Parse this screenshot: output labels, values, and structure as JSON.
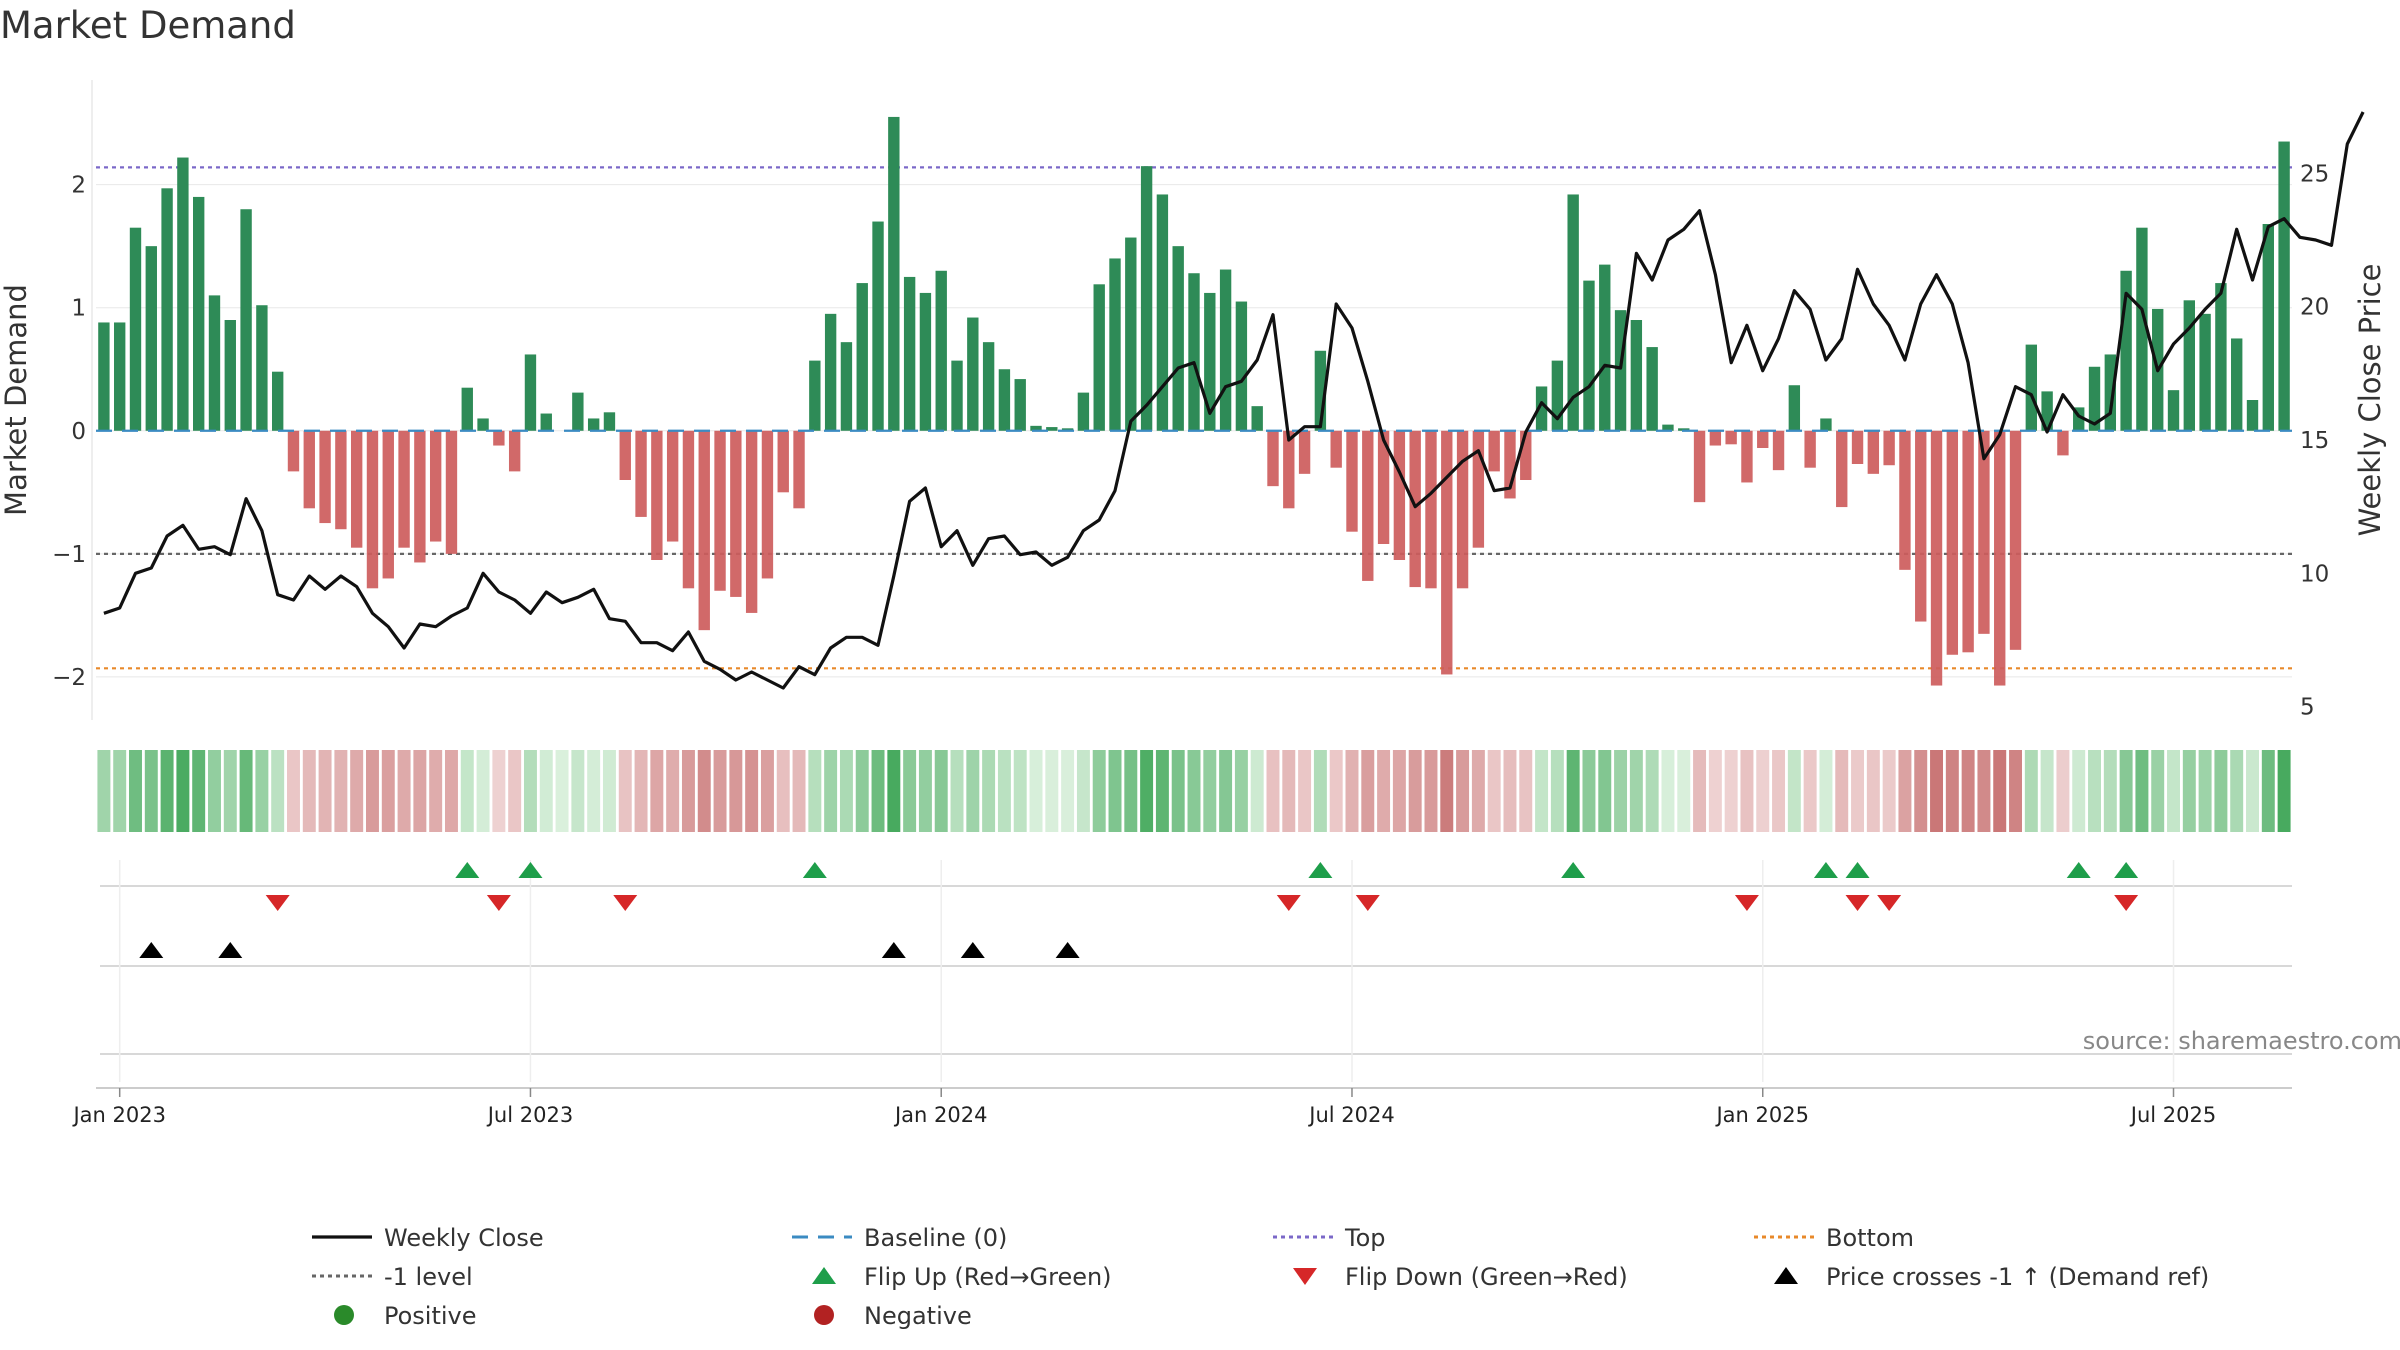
{
  "chart_data": {
    "type": "bar",
    "title": "Market Demand",
    "ylabel": "Market Demand",
    "y2label": "Weekly Close Price",
    "ylim": [
      -2.35,
      2.85
    ],
    "y2lim": [
      4.5,
      28.5
    ],
    "yticks": [
      "−2",
      "−1",
      "0",
      "1",
      "2"
    ],
    "ytick_values": [
      -2,
      -1,
      0,
      1,
      2
    ],
    "y2ticks": [
      "5",
      "10",
      "15",
      "20",
      "25"
    ],
    "y2tick_values": [
      5,
      10,
      15,
      20,
      25
    ],
    "xticks": [
      "Jan 2023",
      "Jul 2023",
      "Jan 2024",
      "Jul 2024",
      "Jan 2025",
      "Jul 2025"
    ],
    "xtick_weeks": [
      1,
      27,
      53,
      79,
      105,
      131
    ],
    "reference_lines": {
      "top": 2.14,
      "bottom": -1.93,
      "minus_one": -1,
      "baseline": 0
    },
    "colors": {
      "positive": "#2e8b57",
      "negative": "#cd5c5c",
      "close": "#111111",
      "top": "#7b68c8",
      "bottom": "#e8892a",
      "minus_one": "#666666",
      "baseline": "#3b8bc2",
      "flip_up": "#1e9e4a",
      "flip_down": "#d62728",
      "cross": "#000000",
      "legend_positive": "#2a8a2a",
      "legend_negative": "#b22222"
    },
    "demand": [
      0.88,
      0.88,
      1.65,
      1.5,
      1.97,
      2.22,
      1.9,
      1.1,
      0.9,
      1.8,
      1.02,
      0.48,
      -0.33,
      -0.63,
      -0.75,
      -0.8,
      -0.95,
      -1.28,
      -1.2,
      -0.95,
      -1.07,
      -0.9,
      -1.0,
      0.35,
      0.1,
      -0.12,
      -0.33,
      0.62,
      0.14,
      0,
      0.31,
      0.1,
      0.15,
      -0.4,
      -0.7,
      -1.05,
      -0.9,
      -1.28,
      -1.62,
      -1.3,
      -1.35,
      -1.48,
      -1.2,
      -0.5,
      -0.63,
      0.57,
      0.95,
      0.72,
      1.2,
      1.7,
      2.55,
      1.25,
      1.12,
      1.3,
      0.57,
      0.92,
      0.72,
      0.5,
      0.42,
      0.04,
      0.03,
      0.02,
      0.31,
      1.19,
      1.4,
      1.57,
      2.15,
      1.92,
      1.5,
      1.28,
      1.12,
      1.31,
      1.05,
      0.2,
      -0.45,
      -0.63,
      -0.35,
      0.65,
      -0.3,
      -0.82,
      -1.22,
      -0.92,
      -1.05,
      -1.27,
      -1.28,
      -1.98,
      -1.28,
      -0.95,
      -0.33,
      -0.55,
      -0.4,
      0.36,
      0.57,
      1.92,
      1.22,
      1.35,
      0.98,
      0.9,
      0.68,
      0.05,
      0.02,
      -0.58,
      -0.12,
      -0.11,
      -0.42,
      -0.14,
      -0.32,
      0.37,
      -0.3,
      0.1,
      -0.62,
      -0.27,
      -0.35,
      -0.28,
      -1.13,
      -1.55,
      -2.07,
      -1.82,
      -1.8,
      -1.65,
      -2.07,
      -1.78,
      0.7,
      0.32,
      -0.2,
      0.19,
      0.52,
      0.62,
      1.3,
      1.65,
      0.99,
      0.33,
      1.06,
      0.95,
      1.2,
      0.75,
      0.25,
      1.68,
      2.35
    ],
    "close": [
      8.5,
      8.7,
      10.0,
      10.2,
      11.4,
      11.8,
      10.9,
      11.0,
      10.7,
      12.8,
      11.6,
      9.2,
      9.0,
      9.9,
      9.4,
      9.9,
      9.5,
      8.5,
      8.0,
      7.2,
      8.1,
      8.0,
      8.4,
      8.7,
      10.0,
      9.3,
      9.0,
      8.5,
      9.3,
      8.9,
      9.1,
      9.4,
      8.3,
      8.2,
      7.4,
      7.4,
      7.1,
      7.8,
      6.7,
      6.4,
      6.0,
      6.3,
      6.0,
      5.7,
      6.5,
      6.2,
      7.2,
      7.6,
      7.6,
      7.3,
      9.9,
      12.7,
      13.2,
      11.0,
      11.6,
      10.3,
      11.3,
      11.4,
      10.7,
      10.8,
      10.3,
      10.6,
      11.6,
      12.0,
      13.1,
      15.7,
      16.3,
      17.0,
      17.7,
      17.9,
      16.0,
      17.0,
      17.2,
      18.0,
      19.7,
      15.0,
      15.5,
      15.5,
      20.1,
      19.2,
      17.2,
      15.0,
      13.8,
      12.5,
      13.0,
      13.6,
      14.2,
      14.6,
      13.1,
      13.2,
      15.3,
      16.4,
      15.8,
      16.6,
      17.0,
      17.8,
      17.7,
      22.0,
      21.0,
      22.5,
      22.9,
      23.6,
      21.2,
      17.9,
      19.3,
      17.6,
      18.8,
      20.6,
      19.9,
      18.0,
      18.8,
      21.4,
      20.1,
      19.3,
      18.0,
      20.1,
      21.2,
      20.1,
      17.9,
      14.3,
      15.2,
      17.0,
      16.7,
      15.3,
      16.7,
      15.9,
      15.6,
      16.0,
      20.5,
      19.9,
      17.6,
      18.6,
      19.2,
      19.9,
      20.5,
      22.9,
      21.0,
      23.0,
      23.3,
      22.6,
      22.5,
      22.3,
      26.1,
      27.3
    ],
    "heat_levels": [
      0.4,
      0.4,
      0.73,
      0.66,
      0.87,
      0.98,
      0.84,
      0.49,
      0.4,
      0.79,
      0.45,
      0.21,
      -0.15,
      -0.28,
      -0.33,
      -0.35,
      -0.42,
      -0.57,
      -0.53,
      -0.42,
      -0.47,
      -0.4,
      -0.44,
      0.15,
      0.04,
      -0.05,
      -0.15,
      0.27,
      0.06,
      0,
      0.14,
      0.04,
      0.07,
      -0.18,
      -0.31,
      -0.46,
      -0.4,
      -0.57,
      -0.71,
      -0.57,
      -0.6,
      -0.65,
      -0.53,
      -0.22,
      -0.28,
      0.25,
      0.42,
      0.32,
      0.53,
      0.75,
      1.0,
      0.55,
      0.49,
      0.57,
      0.25,
      0.41,
      0.32,
      0.22,
      0.19,
      0.02,
      0.01,
      0.01,
      0.14,
      0.52,
      0.62,
      0.69,
      0.95,
      0.85,
      0.66,
      0.56,
      0.49,
      0.58,
      0.46,
      0.09,
      -0.2,
      -0.28,
      -0.15,
      0.29,
      -0.13,
      -0.36,
      -0.54,
      -0.41,
      -0.46,
      -0.56,
      -0.57,
      -0.87,
      -0.57,
      -0.42,
      -0.15,
      -0.24,
      -0.18,
      0.16,
      0.25,
      0.85,
      0.54,
      0.6,
      0.43,
      0.4,
      0.3,
      0.02,
      0.01,
      -0.26,
      -0.05,
      -0.05,
      -0.19,
      -0.06,
      -0.14,
      0.16,
      -0.13,
      0.04,
      -0.27,
      -0.12,
      -0.15,
      -0.12,
      -0.5,
      -0.68,
      -0.91,
      -0.8,
      -0.79,
      -0.73,
      -0.91,
      -0.79,
      0.31,
      0.14,
      -0.09,
      0.08,
      0.23,
      0.27,
      0.57,
      0.73,
      0.44,
      0.15,
      0.47,
      0.42,
      0.53,
      0.33,
      0.11,
      0.74,
      1.0
    ],
    "flip_up_weeks": [
      23,
      27,
      45,
      77,
      93,
      109,
      111,
      125,
      128
    ],
    "flip_down_weeks": [
      11,
      25,
      33,
      75,
      80,
      104,
      111,
      113,
      128
    ],
    "cross_weeks": [
      3,
      8,
      50,
      55,
      61
    ],
    "source_text": "source: sharemaestro.com",
    "legend": [
      {
        "label": "Weekly Close",
        "kind": "solid-line",
        "color": "#111111"
      },
      {
        "label": "Baseline (0)",
        "kind": "dash-line",
        "color": "#3b8bc2"
      },
      {
        "label": "Top",
        "kind": "dot-line",
        "color": "#7b68c8"
      },
      {
        "label": "Bottom",
        "kind": "dot-line",
        "color": "#e8892a"
      },
      {
        "label": "-1 level",
        "kind": "dot-line",
        "color": "#666666"
      },
      {
        "label": "Flip Up (Red→Green)",
        "kind": "tri-up",
        "color": "#1e9e4a"
      },
      {
        "label": "Flip Down (Green→Red)",
        "kind": "tri-down",
        "color": "#d62728"
      },
      {
        "label": "Price crosses -1 ↑ (Demand ref)",
        "kind": "tri-up",
        "color": "#000000"
      },
      {
        "label": "Positive",
        "kind": "circle",
        "color": "#2a8a2a"
      },
      {
        "label": "Negative",
        "kind": "circle",
        "color": "#b22222"
      }
    ]
  }
}
